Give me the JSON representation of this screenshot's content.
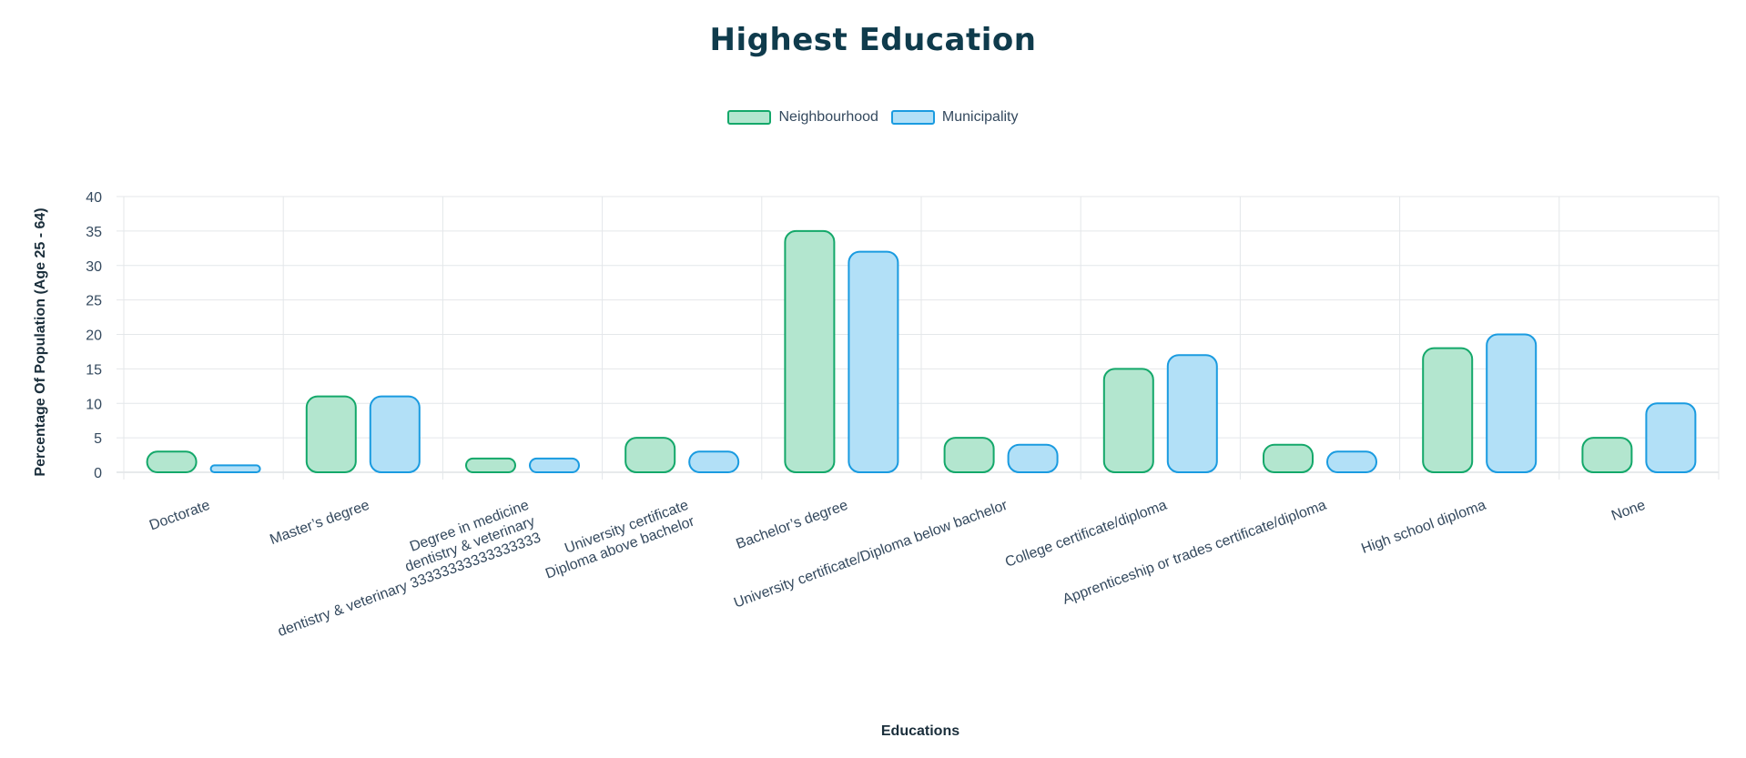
{
  "chart_data": {
    "type": "bar",
    "title": "Highest Education",
    "xlabel": "Educations",
    "ylabel": "Percentage Of Population (Age 25 - 64)",
    "ylim": [
      0,
      40
    ],
    "y_ticks": [
      "0",
      "5",
      "10",
      "15",
      "20",
      "25",
      "30",
      "35",
      "40"
    ],
    "grid": true,
    "legend_position": "top-center",
    "categories": [
      [
        "Doctorate"
      ],
      [
        "Master’s degree"
      ],
      [
        "Degree in medicine",
        "dentistry & veterinary",
        "dentistry & veterinary 33333333333333333"
      ],
      [
        "University certificate",
        "Diploma above bachelor"
      ],
      [
        "Bachelor’s degree"
      ],
      [
        "University certificate/Diploma below bachelor"
      ],
      [
        "College certificate/diploma"
      ],
      [
        "Apprenticeship or trades certificate/diploma"
      ],
      [
        "High school diploma"
      ],
      [
        "None"
      ]
    ],
    "series": [
      {
        "name": "Neighbourhood",
        "values": [
          3,
          11,
          2,
          5,
          35,
          5,
          15,
          4,
          18,
          5
        ],
        "fill": "#b3e6cf",
        "stroke": "#14a86a"
      },
      {
        "name": "Municipality",
        "values": [
          1,
          11,
          2,
          3,
          32,
          4,
          17,
          3,
          20,
          10
        ],
        "fill": "#b2e0f7",
        "stroke": "#1a9be0"
      }
    ]
  }
}
